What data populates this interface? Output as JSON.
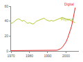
{
  "chart_data": {
    "type": "line",
    "x": [
      1970,
      1971,
      1972,
      1973,
      1974,
      1975,
      1976,
      1977,
      1978,
      1979,
      1980,
      1981,
      1982,
      1983,
      1984,
      1985,
      1986,
      1987,
      1988,
      1989,
      1990,
      1991,
      1992,
      1993,
      1994,
      1995,
      1996,
      1997,
      1998,
      1999,
      2000,
      2001,
      2002,
      2003,
      2004,
      2005
    ],
    "series": [
      {
        "name": "Physical",
        "color": "#b5c832",
        "values": [
          37,
          38,
          40,
          42,
          43,
          42,
          40,
          41,
          39,
          37,
          38,
          37,
          36,
          38,
          40,
          41,
          42,
          43,
          44,
          42,
          41,
          40,
          41,
          40,
          41,
          42,
          43,
          44,
          45,
          44,
          43,
          42,
          42,
          40,
          39,
          38
        ]
      },
      {
        "name": "Digital",
        "color": "#e8282b",
        "values": [
          0.5,
          0.5,
          0.5,
          0.5,
          0.5,
          0.5,
          0.5,
          0.5,
          0.5,
          0.5,
          0.5,
          0.5,
          0.5,
          0.5,
          0.5,
          0.5,
          0.5,
          0.5,
          0.5,
          0.5,
          0.5,
          0.5,
          0.5,
          0.5,
          0.5,
          1,
          2,
          3,
          5,
          8,
          12,
          18,
          25,
          33,
          45,
          58
        ]
      }
    ],
    "xlim": [
      1970,
      2007
    ],
    "xticks": [
      1970,
      1980,
      1990,
      2000
    ],
    "ylim": [
      0,
      60
    ],
    "yticks": [
      0,
      20,
      40,
      60
    ],
    "grid": false
  }
}
